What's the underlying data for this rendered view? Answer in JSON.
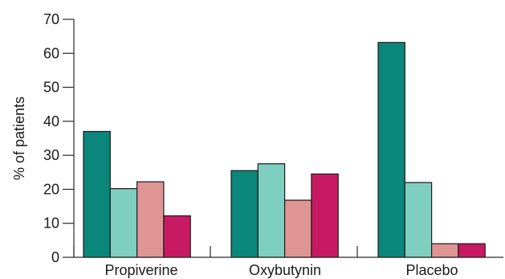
{
  "chart_data": {
    "type": "bar",
    "ylabel": "% of patients",
    "xlabel": "",
    "ylim": [
      0,
      70
    ],
    "yticks": [
      0,
      10,
      20,
      30,
      40,
      50,
      60,
      70
    ],
    "categories": [
      "Propiverine",
      "Oxybutynin",
      "Placebo"
    ],
    "series": [
      {
        "color": "#0a877a",
        "values": [
          37,
          25.5,
          63.2
        ]
      },
      {
        "color": "#7fcfc0",
        "values": [
          20.2,
          27.5,
          22
        ]
      },
      {
        "color": "#e09595",
        "values": [
          22.2,
          16.8,
          4
        ]
      },
      {
        "color": "#c81a63",
        "values": [
          12.2,
          24.5,
          4
        ]
      }
    ],
    "grid": false,
    "legend": "none"
  }
}
